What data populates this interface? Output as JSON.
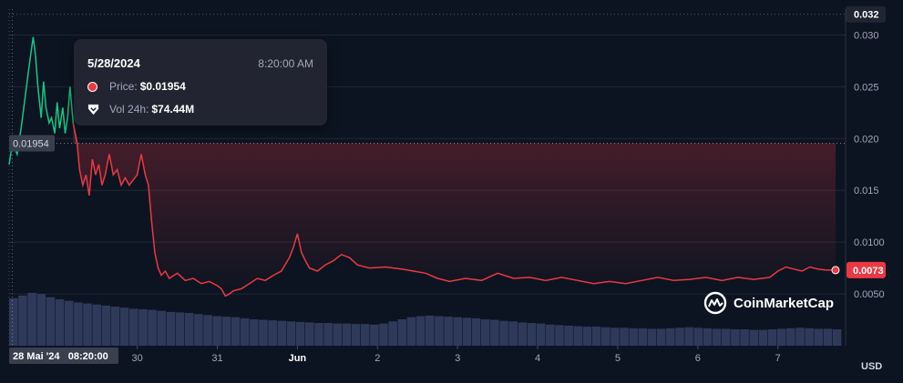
{
  "tooltip": {
    "date": "5/28/2024",
    "time": "8:20:00 AM",
    "price_label": "Price:",
    "price_value": "$0.01954",
    "vol_label": "Vol 24h:",
    "vol_value": "$74.44M"
  },
  "brand": "CoinMarketCap",
  "currency": "USD",
  "chart_data": {
    "type": "line",
    "y_ticks": [
      {
        "label": "0.032",
        "value": 0.032,
        "highlight": true
      },
      {
        "label": "0.030",
        "value": 0.03
      },
      {
        "label": "0.025",
        "value": 0.025
      },
      {
        "label": "0.020",
        "value": 0.02
      },
      {
        "label": "0.015",
        "value": 0.015
      },
      {
        "label": "0.0100",
        "value": 0.01
      },
      {
        "label": "0.0050",
        "value": 0.005
      }
    ],
    "ylim": [
      0.0,
      0.0325
    ],
    "xlim": [
      0.0,
      10.4
    ],
    "x_ticks": [
      {
        "label": "30",
        "x": 1.6
      },
      {
        "label": "31",
        "x": 2.6
      },
      {
        "label": "Jun",
        "x": 3.6
      },
      {
        "label": "2",
        "x": 4.6
      },
      {
        "label": "3",
        "x": 5.6
      },
      {
        "label": "4",
        "x": 6.6
      },
      {
        "label": "5",
        "x": 7.6
      },
      {
        "label": "6",
        "x": 8.6
      },
      {
        "label": "7",
        "x": 9.6
      }
    ],
    "crosshair": {
      "x_label": "28 Mai '24   08:20:00",
      "x": 0.04,
      "y_label": "0.01954",
      "y": 0.01954
    },
    "current": {
      "label": "0.0073",
      "value": 0.0073
    },
    "split_x": 0.85,
    "series": [
      {
        "points": [
          [
            0.0,
            0.0175
          ],
          [
            0.04,
            0.0195
          ],
          [
            0.1,
            0.0185
          ],
          [
            0.15,
            0.021
          ],
          [
            0.2,
            0.024
          ],
          [
            0.25,
            0.027
          ],
          [
            0.3,
            0.0298
          ],
          [
            0.33,
            0.028
          ],
          [
            0.36,
            0.025
          ],
          [
            0.4,
            0.022
          ],
          [
            0.43,
            0.0255
          ],
          [
            0.46,
            0.023
          ],
          [
            0.5,
            0.0215
          ],
          [
            0.53,
            0.022
          ],
          [
            0.57,
            0.0205
          ],
          [
            0.6,
            0.0235
          ],
          [
            0.63,
            0.021
          ],
          [
            0.67,
            0.023
          ],
          [
            0.7,
            0.0205
          ],
          [
            0.73,
            0.022
          ],
          [
            0.76,
            0.025
          ],
          [
            0.8,
            0.0215
          ],
          [
            0.85,
            0.0195
          ],
          [
            0.88,
            0.017
          ],
          [
            0.92,
            0.0155
          ],
          [
            0.96,
            0.0165
          ],
          [
            1.0,
            0.0145
          ],
          [
            1.04,
            0.018
          ],
          [
            1.08,
            0.0165
          ],
          [
            1.12,
            0.0175
          ],
          [
            1.16,
            0.0155
          ],
          [
            1.2,
            0.0165
          ],
          [
            1.25,
            0.0185
          ],
          [
            1.3,
            0.0165
          ],
          [
            1.35,
            0.017
          ],
          [
            1.4,
            0.0155
          ],
          [
            1.45,
            0.0162
          ],
          [
            1.5,
            0.0155
          ],
          [
            1.55,
            0.016
          ],
          [
            1.6,
            0.0165
          ],
          [
            1.65,
            0.0185
          ],
          [
            1.7,
            0.0165
          ],
          [
            1.74,
            0.0155
          ],
          [
            1.78,
            0.012
          ],
          [
            1.82,
            0.009
          ],
          [
            1.86,
            0.0075
          ],
          [
            1.9,
            0.0068
          ],
          [
            1.95,
            0.0072
          ],
          [
            2.0,
            0.0065
          ],
          [
            2.1,
            0.007
          ],
          [
            2.2,
            0.0063
          ],
          [
            2.3,
            0.0065
          ],
          [
            2.4,
            0.006
          ],
          [
            2.5,
            0.0062
          ],
          [
            2.6,
            0.0058
          ],
          [
            2.65,
            0.0055
          ],
          [
            2.7,
            0.0048
          ],
          [
            2.75,
            0.005
          ],
          [
            2.8,
            0.0053
          ],
          [
            2.9,
            0.0055
          ],
          [
            3.0,
            0.006
          ],
          [
            3.1,
            0.0065
          ],
          [
            3.2,
            0.0063
          ],
          [
            3.3,
            0.0068
          ],
          [
            3.4,
            0.0072
          ],
          [
            3.5,
            0.0085
          ],
          [
            3.55,
            0.0095
          ],
          [
            3.6,
            0.0108
          ],
          [
            3.65,
            0.009
          ],
          [
            3.7,
            0.0082
          ],
          [
            3.75,
            0.0075
          ],
          [
            3.85,
            0.0072
          ],
          [
            3.95,
            0.0078
          ],
          [
            4.05,
            0.0082
          ],
          [
            4.15,
            0.0088
          ],
          [
            4.25,
            0.0085
          ],
          [
            4.35,
            0.0078
          ],
          [
            4.5,
            0.0075
          ],
          [
            4.7,
            0.0076
          ],
          [
            4.9,
            0.0074
          ],
          [
            5.05,
            0.0072
          ],
          [
            5.2,
            0.007
          ],
          [
            5.35,
            0.0065
          ],
          [
            5.5,
            0.0062
          ],
          [
            5.7,
            0.0065
          ],
          [
            5.9,
            0.0063
          ],
          [
            6.1,
            0.007
          ],
          [
            6.3,
            0.0065
          ],
          [
            6.5,
            0.0066
          ],
          [
            6.7,
            0.0063
          ],
          [
            6.9,
            0.0066
          ],
          [
            7.1,
            0.0063
          ],
          [
            7.3,
            0.006
          ],
          [
            7.5,
            0.0062
          ],
          [
            7.7,
            0.006
          ],
          [
            7.9,
            0.0063
          ],
          [
            8.1,
            0.0066
          ],
          [
            8.3,
            0.0063
          ],
          [
            8.5,
            0.0064
          ],
          [
            8.7,
            0.0066
          ],
          [
            8.9,
            0.0063
          ],
          [
            9.1,
            0.0066
          ],
          [
            9.3,
            0.0064
          ],
          [
            9.5,
            0.0066
          ],
          [
            9.6,
            0.0072
          ],
          [
            9.7,
            0.0076
          ],
          [
            9.8,
            0.0074
          ],
          [
            9.9,
            0.0072
          ],
          [
            10.0,
            0.0076
          ],
          [
            10.1,
            0.0074
          ],
          [
            10.2,
            0.0073
          ],
          [
            10.32,
            0.0073
          ]
        ]
      }
    ],
    "volume": [
      0.9,
      0.95,
      1.0,
      0.98,
      0.92,
      0.88,
      0.85,
      0.82,
      0.8,
      0.78,
      0.76,
      0.74,
      0.72,
      0.7,
      0.69,
      0.68,
      0.66,
      0.64,
      0.63,
      0.62,
      0.6,
      0.58,
      0.56,
      0.55,
      0.54,
      0.52,
      0.5,
      0.49,
      0.48,
      0.47,
      0.46,
      0.45,
      0.44,
      0.43,
      0.43,
      0.42,
      0.42,
      0.41,
      0.41,
      0.4,
      0.42,
      0.46,
      0.5,
      0.54,
      0.56,
      0.57,
      0.56,
      0.55,
      0.54,
      0.53,
      0.52,
      0.5,
      0.49,
      0.47,
      0.46,
      0.44,
      0.43,
      0.42,
      0.4,
      0.39,
      0.38,
      0.37,
      0.36,
      0.36,
      0.35,
      0.34,
      0.34,
      0.33,
      0.33,
      0.32,
      0.32,
      0.33,
      0.34,
      0.35,
      0.34,
      0.33,
      0.32,
      0.32,
      0.31,
      0.31,
      0.3,
      0.3,
      0.31,
      0.32,
      0.33,
      0.34,
      0.33,
      0.32,
      0.32,
      0.31
    ],
    "colors": {
      "up": "#16c784",
      "down": "#ea3943",
      "volume": "#2f3a5b",
      "highlight": "#ea3943"
    }
  }
}
